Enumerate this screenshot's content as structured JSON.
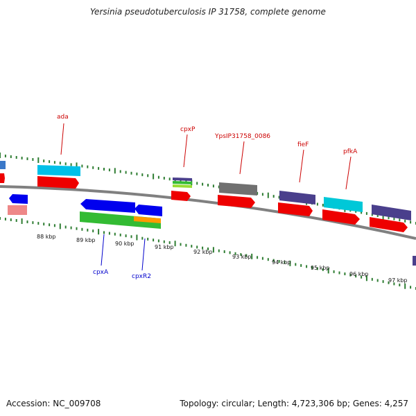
{
  "title": "Yersinia pseudotuberculosis IP 31758, complete genome",
  "footer": {
    "accession": "Accession: NC_009708",
    "summary": "Topology: circular; Length: 4,723,306 bp; Genes: 4,257"
  },
  "scale": {
    "labels": [
      "88 kbp",
      "89 kbp",
      "90 kbp",
      "91 kbp",
      "92 kbp",
      "93 kbp",
      "94 kbp",
      "95 kbp",
      "96 kbp",
      "97 kbp"
    ]
  },
  "gene_labels": {
    "ada": "ada",
    "cpxP": "cpxP",
    "ypsip": "YpsIP31758_0086",
    "fieF": "fieF",
    "pfkA": "pfkA",
    "cpxA": "cpxA",
    "cpxR2": "cpxR2"
  },
  "colors": {
    "backbone": "#808080",
    "tick": "#2e7d32",
    "red_gene": "#ee0000",
    "blue_gene": "#0000ee",
    "green_gene": "#33bb33",
    "cyan_gene": "#00c8d8",
    "purple_gene": "#4a3f8c",
    "gray_gene": "#707070",
    "orange_gene": "#ff9900"
  }
}
